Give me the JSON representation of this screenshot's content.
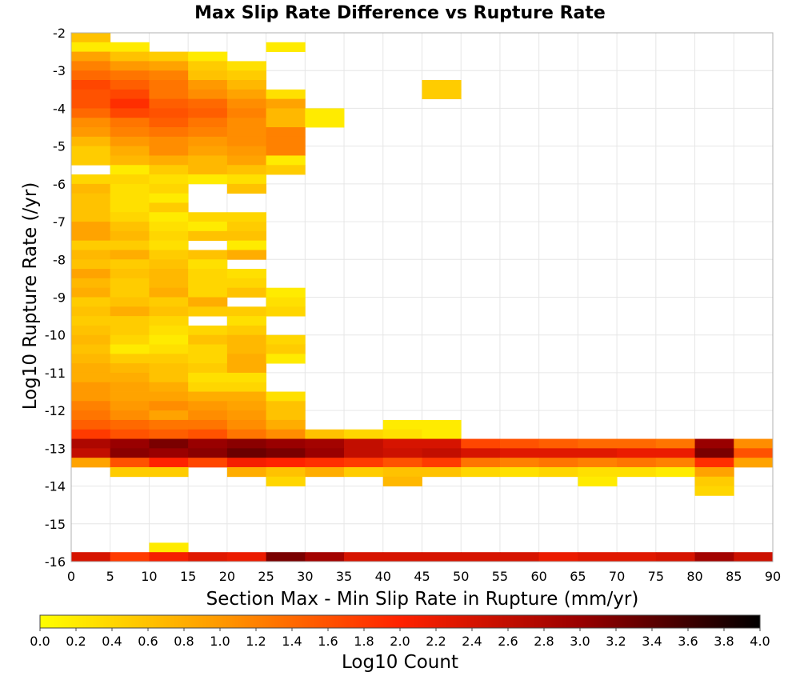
{
  "chart_data": {
    "type": "heatmap",
    "title": "Max Slip Rate Difference vs Rupture Rate",
    "xlabel": "Section Max - Min Slip Rate in Rupture (mm/yr)",
    "ylabel": "Log10 Rupture Rate (/yr)",
    "xlim": [
      0,
      90
    ],
    "ylim": [
      -16,
      -2
    ],
    "x_ticks": [
      "0",
      "5",
      "10",
      "15",
      "20",
      "25",
      "30",
      "35",
      "40",
      "45",
      "50",
      "55",
      "60",
      "65",
      "70",
      "75",
      "80",
      "85",
      "90"
    ],
    "y_ticks": [
      "-2",
      "-3",
      "-4",
      "-5",
      "-6",
      "-7",
      "-8",
      "-9",
      "-10",
      "-11",
      "-12",
      "-13",
      "-14",
      "-15",
      "-16"
    ],
    "grid": true,
    "bin_width_x": 5,
    "bin_height_y": 0.25,
    "colorbar": {
      "label": "Log10 Count",
      "range": [
        0,
        4
      ],
      "ticks": [
        "0.0",
        "0.2",
        "0.4",
        "0.6",
        "0.8",
        "1.0",
        "1.2",
        "1.4",
        "1.6",
        "1.8",
        "2.0",
        "2.2",
        "2.4",
        "2.6",
        "2.8",
        "3.0",
        "3.2",
        "3.4",
        "3.6",
        "3.8",
        "4.0"
      ],
      "colors": [
        "#ffff00",
        "#ff9900",
        "#ff2200",
        "#990000",
        "#000000"
      ]
    },
    "rows": [
      {
        "y": -2.125,
        "values": [
          0.6
        ]
      },
      {
        "y": -2.375,
        "values": [
          0.2,
          0.2,
          null,
          null,
          null,
          0.2
        ]
      },
      {
        "y": -2.625,
        "values": [
          0.9,
          0.6,
          0.5,
          0.2
        ]
      },
      {
        "y": -2.875,
        "values": [
          1.2,
          1.0,
          0.9,
          0.5,
          0.3
        ]
      },
      {
        "y": -3.125,
        "values": [
          1.4,
          1.3,
          1.2,
          0.6,
          0.5
        ]
      },
      {
        "y": -3.375,
        "values": [
          1.7,
          1.5,
          1.3,
          1.0,
          0.7,
          null,
          null,
          null,
          null,
          0.5
        ]
      },
      {
        "y": -3.625,
        "values": [
          1.6,
          1.7,
          1.3,
          1.1,
          0.9,
          0.3,
          null,
          null,
          null,
          0.5
        ]
      },
      {
        "y": -3.875,
        "values": [
          1.6,
          1.9,
          1.5,
          1.4,
          1.1,
          0.9
        ]
      },
      {
        "y": -4.125,
        "values": [
          1.4,
          1.7,
          1.6,
          1.5,
          1.2,
          0.7,
          0.2
        ]
      },
      {
        "y": -4.375,
        "values": [
          1.1,
          1.3,
          1.5,
          1.3,
          1.1,
          0.7,
          0.2
        ]
      },
      {
        "y": -4.625,
        "values": [
          1.0,
          1.2,
          1.3,
          1.2,
          1.1,
          1.2
        ]
      },
      {
        "y": -4.875,
        "values": [
          0.7,
          1.0,
          1.1,
          1.0,
          1.1,
          1.2
        ]
      },
      {
        "y": -5.125,
        "values": [
          0.5,
          0.8,
          1.1,
          0.9,
          1.0,
          1.2
        ]
      },
      {
        "y": -5.375,
        "values": [
          0.5,
          0.7,
          0.8,
          0.7,
          0.9,
          0.2
        ]
      },
      {
        "y": -5.625,
        "values": [
          null,
          0.2,
          0.5,
          0.7,
          0.6,
          0.5
        ]
      },
      {
        "y": -5.875,
        "values": [
          0.4,
          0.4,
          0.3,
          0.2,
          0.3
        ]
      },
      {
        "y": -6.125,
        "values": [
          0.7,
          0.3,
          0.4,
          null,
          0.6
        ]
      },
      {
        "y": -6.375,
        "values": [
          0.6,
          0.3,
          0.2
        ]
      },
      {
        "y": -6.625,
        "values": [
          0.6,
          0.3,
          0.5
        ]
      },
      {
        "y": -6.875,
        "values": [
          0.6,
          0.4,
          0.2,
          0.4,
          0.4
        ]
      },
      {
        "y": -7.125,
        "values": [
          0.9,
          0.6,
          0.3,
          0.2,
          0.5
        ]
      },
      {
        "y": -7.375,
        "values": [
          0.9,
          0.7,
          0.4,
          0.6,
          0.6
        ]
      },
      {
        "y": -7.625,
        "values": [
          0.5,
          0.5,
          0.3,
          null,
          0.2
        ]
      },
      {
        "y": -7.875,
        "values": [
          0.7,
          0.8,
          0.5,
          0.6,
          0.8
        ]
      },
      {
        "y": -8.125,
        "values": [
          0.6,
          0.5,
          0.6,
          0.3
        ]
      },
      {
        "y": -8.375,
        "values": [
          0.9,
          0.6,
          0.7,
          0.4,
          0.3
        ]
      },
      {
        "y": -8.625,
        "values": [
          0.7,
          0.5,
          0.7,
          0.4,
          0.4
        ]
      },
      {
        "y": -8.875,
        "values": [
          0.8,
          0.5,
          0.8,
          0.4,
          0.6,
          0.2
        ]
      },
      {
        "y": -9.125,
        "values": [
          0.5,
          0.6,
          0.5,
          0.8,
          null,
          0.3
        ]
      },
      {
        "y": -9.375,
        "values": [
          0.6,
          0.8,
          0.6,
          0.5,
          0.5,
          0.4
        ]
      },
      {
        "y": -9.625,
        "values": [
          0.5,
          0.5,
          0.4,
          null,
          0.3
        ]
      },
      {
        "y": -9.875,
        "values": [
          0.6,
          0.5,
          0.3,
          0.4,
          0.5
        ]
      },
      {
        "y": -10.125,
        "values": [
          0.7,
          0.4,
          0.2,
          0.6,
          0.7,
          0.4
        ]
      },
      {
        "y": -10.375,
        "values": [
          0.6,
          0.2,
          0.3,
          0.4,
          0.7,
          0.5
        ]
      },
      {
        "y": -10.625,
        "values": [
          0.7,
          0.5,
          0.5,
          0.4,
          0.8,
          0.2
        ]
      },
      {
        "y": -10.875,
        "values": [
          0.8,
          0.7,
          0.6,
          0.5,
          0.8
        ]
      },
      {
        "y": -11.125,
        "values": [
          0.8,
          0.8,
          0.6,
          0.3,
          0.3
        ]
      },
      {
        "y": -11.375,
        "values": [
          1.0,
          0.9,
          0.8,
          0.4,
          0.4
        ]
      },
      {
        "y": -11.625,
        "values": [
          1.0,
          0.9,
          0.9,
          0.8,
          0.8,
          0.3
        ]
      },
      {
        "y": -11.875,
        "values": [
          1.2,
          1.0,
          1.1,
          1.0,
          0.9,
          0.6
        ]
      },
      {
        "y": -12.125,
        "values": [
          1.3,
          1.1,
          0.9,
          1.1,
          1.0,
          0.6
        ]
      },
      {
        "y": -12.375,
        "values": [
          1.5,
          1.4,
          1.3,
          1.3,
          1.1,
          0.8,
          null,
          null,
          0.2,
          0.2
        ]
      },
      {
        "y": -12.625,
        "values": [
          1.8,
          1.6,
          1.5,
          1.6,
          1.3,
          1.1,
          0.6,
          0.4,
          0.3,
          0.2,
          null,
          null,
          null,
          null,
          null,
          null,
          null,
          null
        ]
      },
      {
        "y": -12.875,
        "values": [
          2.8,
          3.0,
          3.2,
          3.0,
          3.1,
          3.0,
          2.9,
          2.6,
          2.4,
          2.4,
          1.7,
          1.6,
          1.5,
          1.4,
          1.4,
          1.3,
          3.0,
          1.1
        ]
      },
      {
        "y": -13.125,
        "values": [
          2.6,
          3.1,
          3.0,
          3.1,
          3.3,
          3.2,
          3.0,
          2.6,
          2.5,
          2.6,
          2.4,
          2.3,
          2.3,
          2.3,
          2.2,
          2.2,
          3.2,
          1.6
        ]
      },
      {
        "y": -13.375,
        "values": [
          0.9,
          1.6,
          2.0,
          1.7,
          2.1,
          2.0,
          1.9,
          1.8,
          1.6,
          1.8,
          1.3,
          1.2,
          1.3,
          1.2,
          1.3,
          1.2,
          1.9,
          0.9
        ]
      },
      {
        "y": -13.625,
        "values": [
          null,
          0.5,
          0.5,
          null,
          0.8,
          0.6,
          0.8,
          0.5,
          0.6,
          0.6,
          0.4,
          0.3,
          0.4,
          0.3,
          0.3,
          0.2,
          0.9
        ]
      },
      {
        "y": -13.875,
        "values": [
          null,
          null,
          null,
          null,
          null,
          0.4,
          null,
          null,
          0.7,
          null,
          null,
          null,
          null,
          0.2,
          null,
          null,
          0.5
        ]
      },
      {
        "y": -14.125,
        "values": [
          null,
          null,
          null,
          null,
          null,
          null,
          null,
          null,
          null,
          null,
          null,
          null,
          null,
          null,
          null,
          null,
          0.4
        ]
      },
      {
        "y": -15.625,
        "values": [
          null,
          null,
          0.2
        ]
      },
      {
        "y": -15.875,
        "values": [
          2.4,
          1.8,
          2.1,
          2.3,
          2.2,
          3.2,
          2.9,
          2.4,
          2.4,
          2.4,
          2.4,
          2.4,
          2.2,
          2.3,
          2.3,
          2.4,
          2.9,
          2.5
        ]
      }
    ]
  }
}
